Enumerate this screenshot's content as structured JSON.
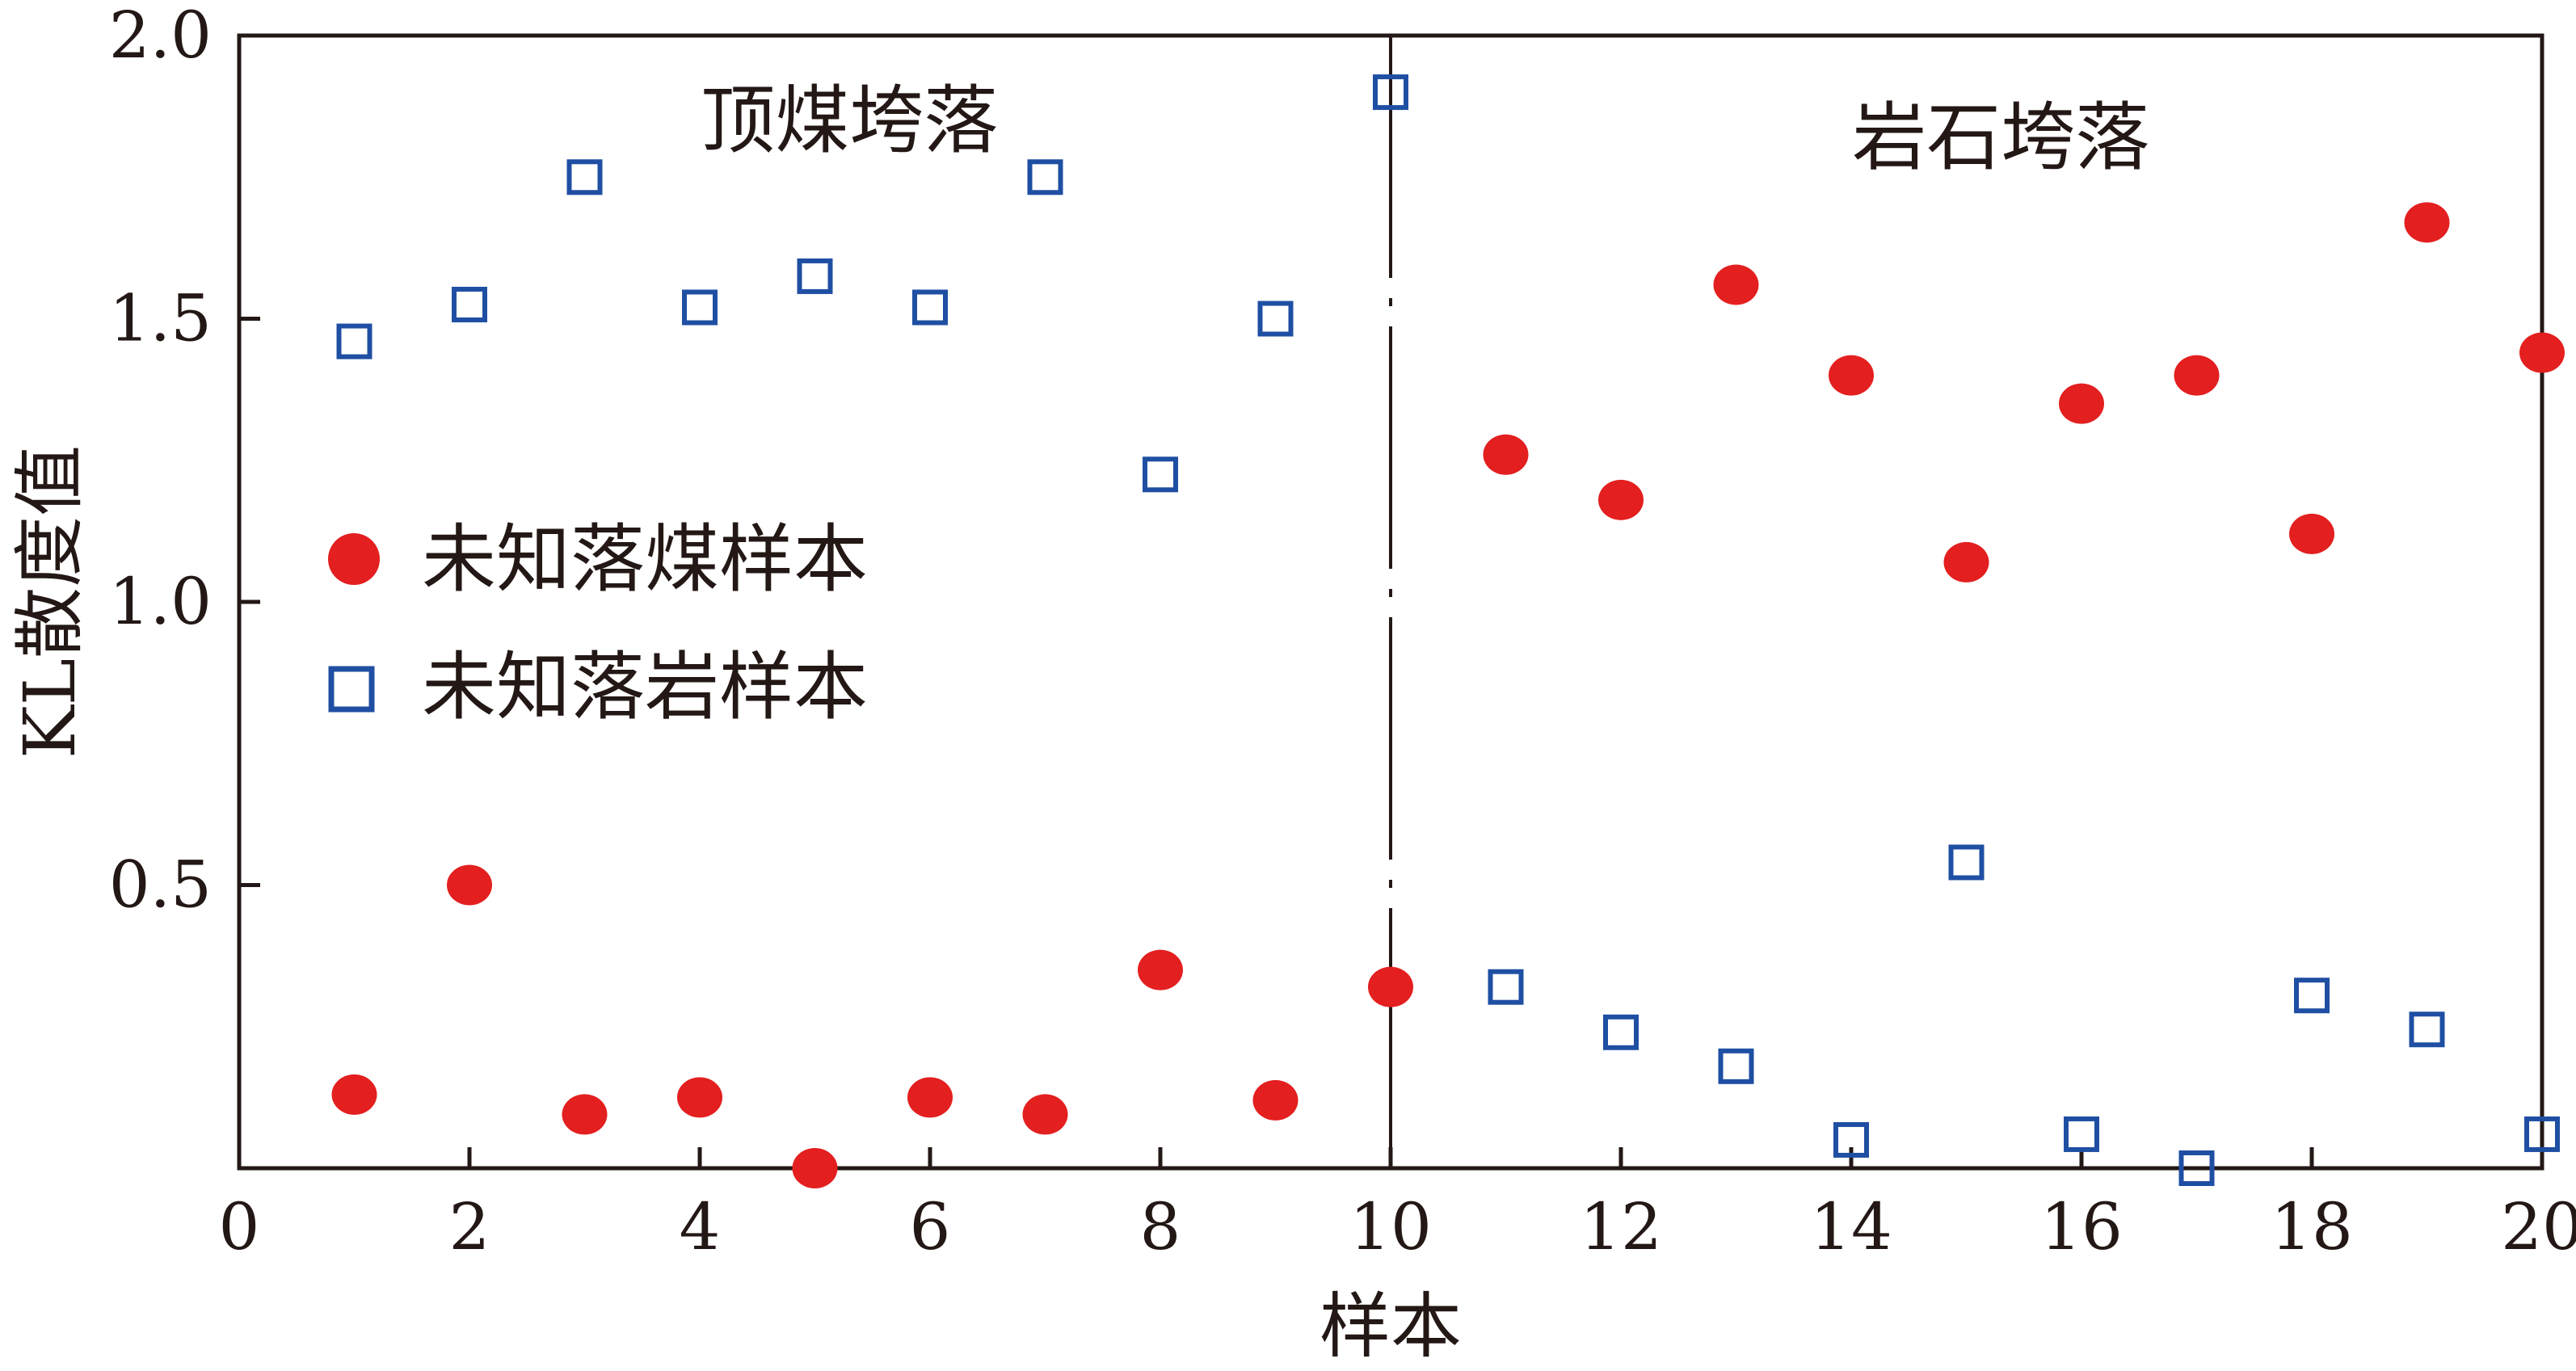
{
  "chart_data": {
    "type": "scatter",
    "title": "",
    "xlabel": "样本",
    "ylabel": "KL散度值",
    "xlim": [
      0,
      20
    ],
    "ylim": [
      0,
      2.0
    ],
    "x_ticks": [
      {
        "value": 0,
        "label": "0"
      },
      {
        "value": 2,
        "label": "2"
      },
      {
        "value": 4,
        "label": "4"
      },
      {
        "value": 6,
        "label": "6"
      },
      {
        "value": 8,
        "label": "8"
      },
      {
        "value": 10,
        "label": "10"
      },
      {
        "value": 12,
        "label": "12"
      },
      {
        "value": 14,
        "label": "14"
      },
      {
        "value": 16,
        "label": "16"
      },
      {
        "value": 18,
        "label": "18"
      },
      {
        "value": 20,
        "label": "20"
      }
    ],
    "y_ticks": [
      {
        "value": 0.5,
        "label": "0.5"
      },
      {
        "value": 1.0,
        "label": "1.0"
      },
      {
        "value": 1.5,
        "label": "1.5"
      },
      {
        "value": 2.0,
        "label": "2.0"
      }
    ],
    "grid": false,
    "legend": {
      "placement": "middle-left",
      "entries": [
        {
          "label": "未知落煤样本",
          "marker": "filled-circle",
          "color": "#e31f1f"
        },
        {
          "label": "未知落岩样本",
          "marker": "open-square",
          "color": "#1f4fa3"
        }
      ]
    },
    "annotations": [
      {
        "text": "顶煤垮落",
        "x": 5.3,
        "y": 1.85
      },
      {
        "text": "岩石垮落",
        "x": 15.3,
        "y": 1.82
      }
    ],
    "divider": {
      "x": 10
    },
    "series": [
      {
        "name": "未知落煤样本",
        "marker": "filled-circle",
        "color": "#e31f1f",
        "x": [
          1,
          2,
          3,
          4,
          5,
          6,
          7,
          8,
          9,
          10,
          11,
          12,
          13,
          14,
          15,
          16,
          17,
          18,
          19,
          20
        ],
        "y": [
          0.13,
          0.5,
          0.095,
          0.125,
          0.0,
          0.125,
          0.095,
          0.35,
          0.12,
          0.32,
          1.26,
          1.18,
          1.56,
          1.4,
          1.07,
          1.35,
          1.4,
          1.12,
          1.67,
          1.44
        ]
      },
      {
        "name": "未知落岩样本",
        "marker": "open-square",
        "color": "#1f4fa3",
        "x": [
          1,
          2,
          3,
          4,
          5,
          6,
          7,
          8,
          9,
          10,
          11,
          12,
          13,
          14,
          15,
          16,
          17,
          18,
          19,
          20
        ],
        "y": [
          1.46,
          1.525,
          1.75,
          1.52,
          1.575,
          1.52,
          1.75,
          1.225,
          1.5,
          1.9,
          0.32,
          0.24,
          0.18,
          0.05,
          0.54,
          0.06,
          0.0,
          0.305,
          0.245,
          0.06
        ]
      }
    ]
  }
}
